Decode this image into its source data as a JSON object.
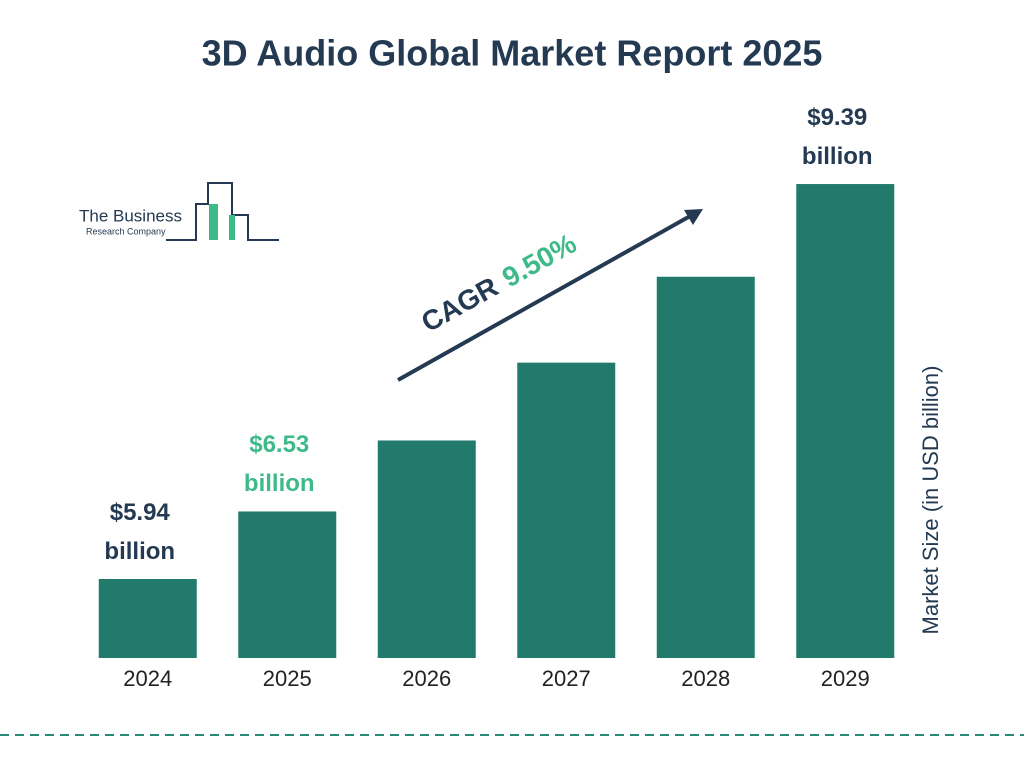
{
  "chart_data": {
    "type": "bar",
    "title": "3D Audio Global Market Report 2025",
    "categories": [
      "2024",
      "2025",
      "2026",
      "2027",
      "2028",
      "2029"
    ],
    "values": [
      5.94,
      6.53,
      7.15,
      7.83,
      8.58,
      9.39
    ],
    "value_labels": [
      "$5.94 billion",
      "$6.53 billion",
      null,
      null,
      null,
      "$9.39 billion"
    ],
    "value_label_colors": [
      "#243a52",
      "#3dba8a",
      null,
      null,
      null,
      "#243a52"
    ],
    "color": "#217a6b",
    "ylim": [
      5.25,
      9.6
    ],
    "y_label": "Market Size (in USD billion)",
    "cagr_label": "CAGR",
    "cagr": "9.50%",
    "cagr_color": "#3dba8a"
  },
  "logo": {
    "line1": "The Business",
    "line2": "Research Company"
  }
}
